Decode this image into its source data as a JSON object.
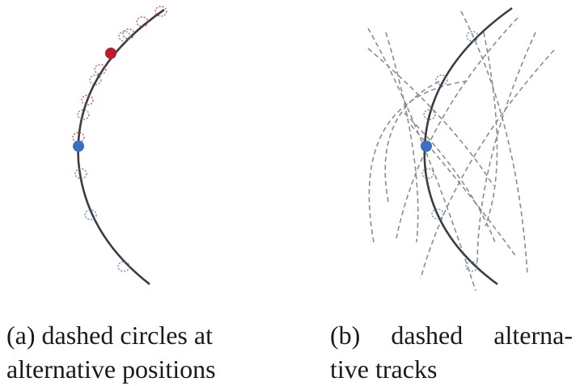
{
  "panels": [
    {
      "id": "a",
      "caption_lines": [
        "(a) dashed circles at",
        "alternative positions"
      ]
    },
    {
      "id": "b",
      "caption_lines": [
        "(b)  dashed  alterna-",
        "tive tracks"
      ]
    }
  ],
  "colors": {
    "track": "#3d3d3d",
    "alt_track": "#8c8c8c",
    "blue_hit": "#3a6fc4",
    "red_hit": "#c0192c",
    "blue_circle": "#4a78c8",
    "red_circle": "#d23a3a"
  }
}
